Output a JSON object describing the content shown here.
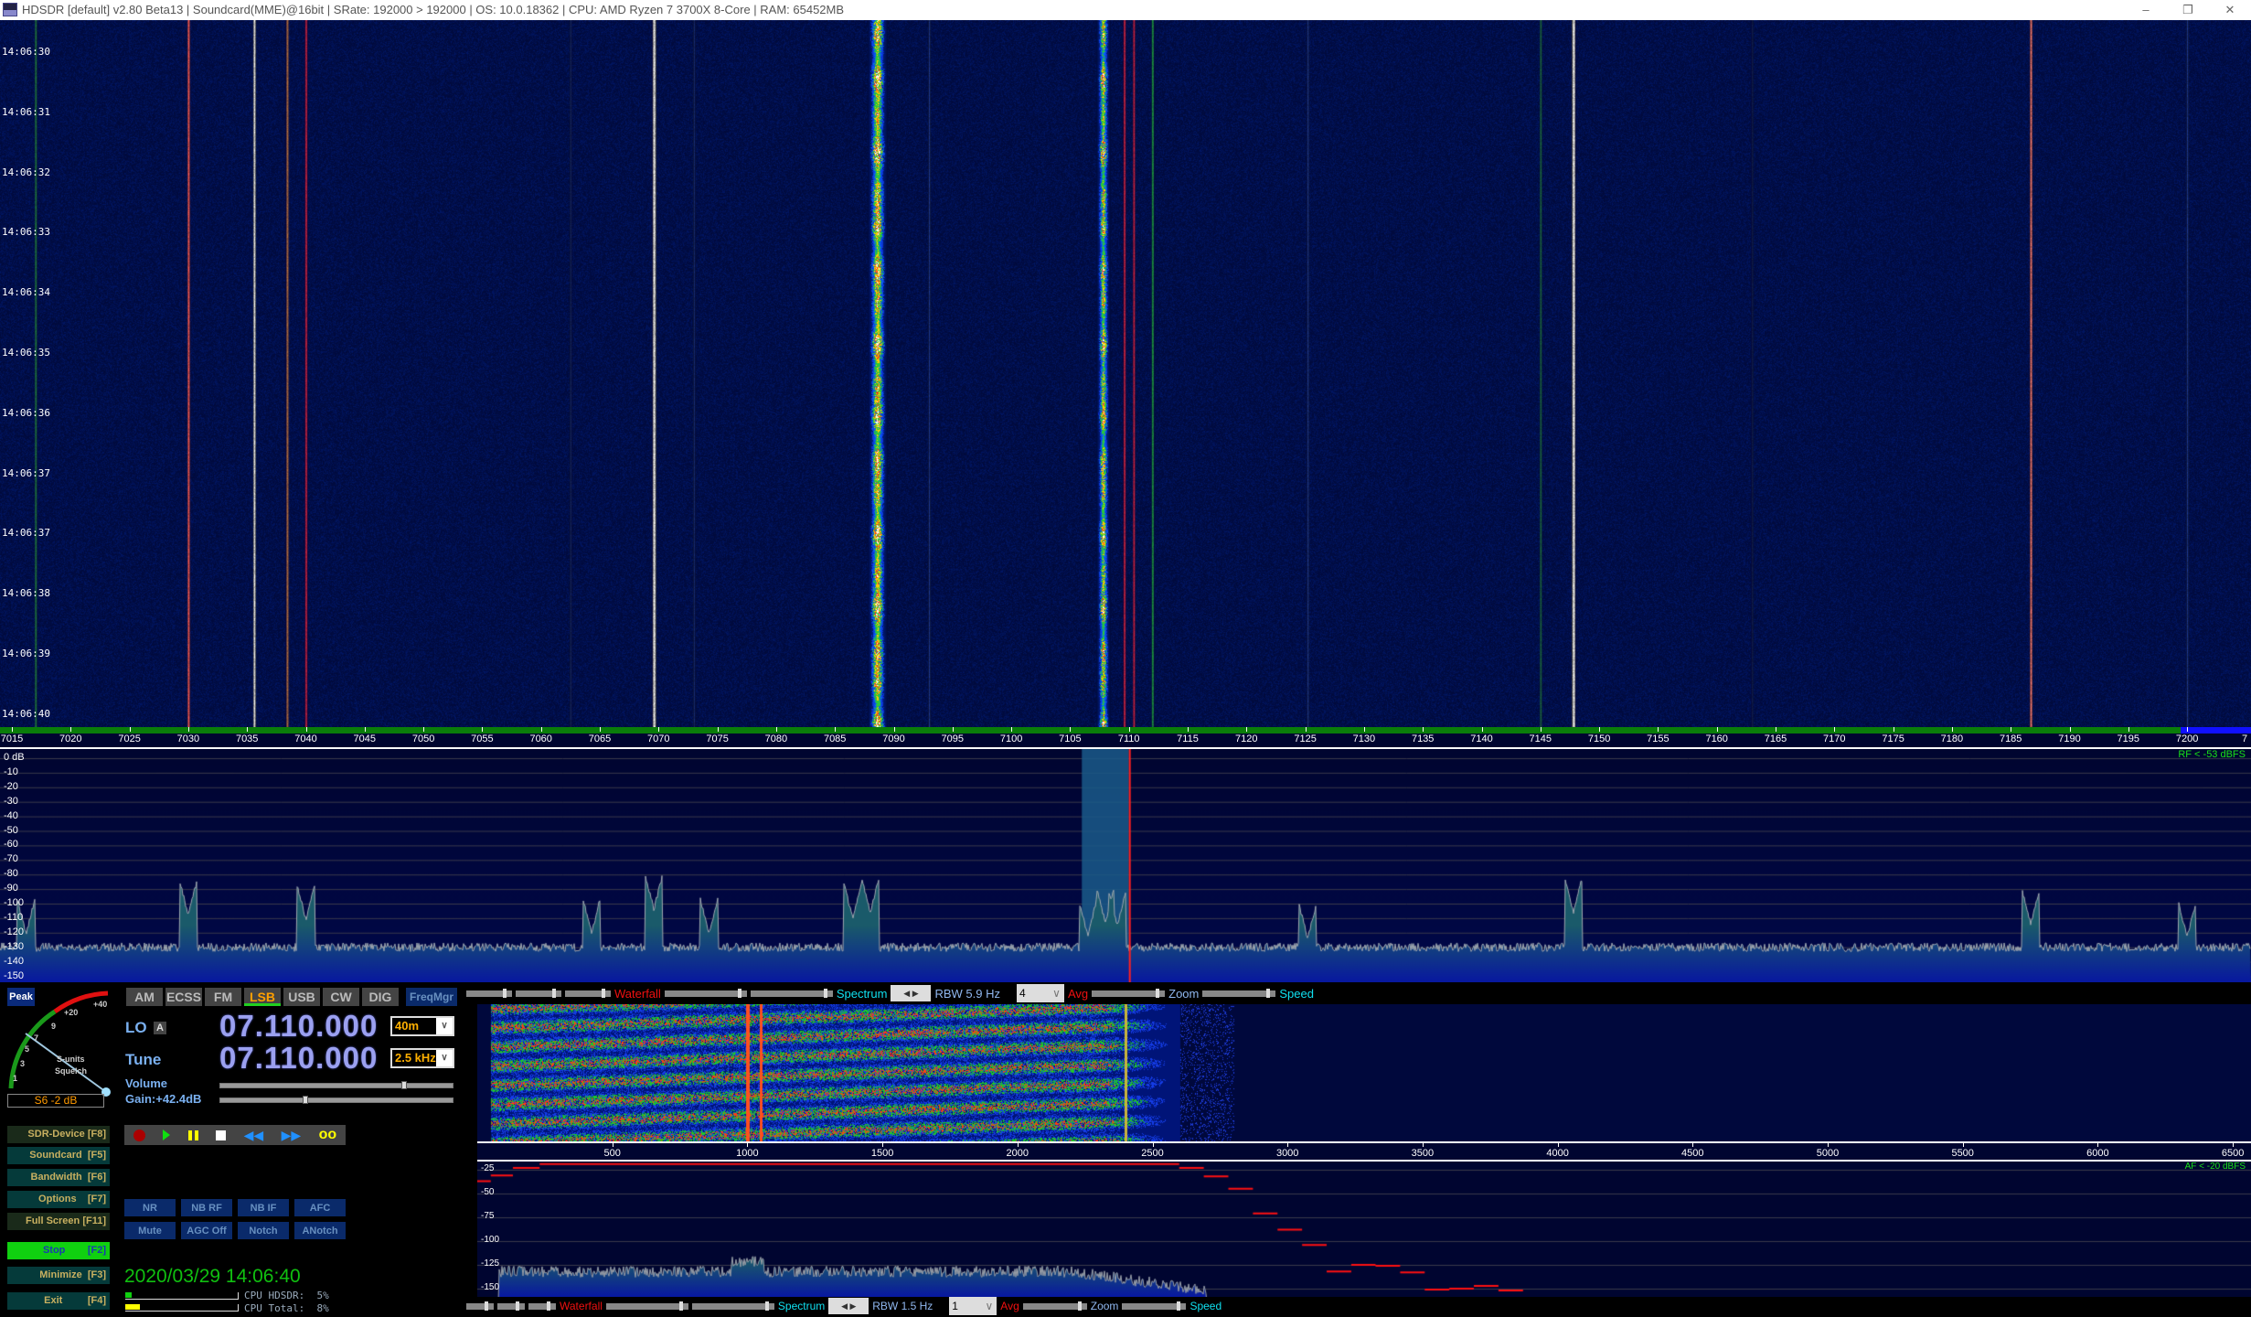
{
  "titlebar": {
    "title": "HDSDR  [default]  v2.80 Beta13  |  Soundcard(MME)@16bit  |  SRate: 192000 > 192000  |  OS: 10.0.18362  |  CPU: AMD Ryzen 7 3700X 8-Core               |  RAM: 65452MB",
    "minimize": "–",
    "restore": "❐",
    "close": "✕"
  },
  "waterfall": {
    "timestamps": [
      "14:06:30",
      "14:06:31",
      "14:06:32",
      "14:06:33",
      "14:06:34",
      "14:06:35",
      "14:06:36",
      "14:06:37",
      "14:06:37",
      "14:06:38",
      "14:06:39",
      "14:06:40"
    ],
    "signals_khz": [
      {
        "f": 7030.0,
        "w": 0.15,
        "s": 1.0,
        "c": "#ff6060"
      },
      {
        "f": 7035.6,
        "w": 0.12,
        "s": 0.95,
        "c": "#ffffff"
      },
      {
        "f": 7038.4,
        "w": 0.2,
        "s": 0.6,
        "c": "#ffa020"
      },
      {
        "f": 7040.0,
        "w": 0.12,
        "s": 0.8,
        "c": "#ff3030"
      },
      {
        "f": 7069.6,
        "w": 0.25,
        "s": 1.0,
        "c": "#ffffff"
      },
      {
        "f": 7073.0,
        "w": 0.15,
        "s": 0.4,
        "c": "#3060ff"
      },
      {
        "f": 7088.6,
        "w": 1.6,
        "s": 1.0,
        "c": "ssb"
      },
      {
        "f": 7093.0,
        "w": 0.1,
        "s": 0.5,
        "c": "#3060ff"
      },
      {
        "f": 7107.8,
        "w": 1.1,
        "s": 0.9,
        "c": "ssb"
      },
      {
        "f": 7109.6,
        "w": 0.1,
        "s": 0.8,
        "c": "#ff3030"
      },
      {
        "f": 7110.4,
        "w": 0.1,
        "s": 0.7,
        "c": "#ff3030"
      },
      {
        "f": 7112.0,
        "w": 0.1,
        "s": 0.6,
        "c": "#30ff30"
      },
      {
        "f": 7125.2,
        "w": 0.12,
        "s": 0.5,
        "c": "#3060ff"
      },
      {
        "f": 7145.0,
        "w": 0.1,
        "s": 0.5,
        "c": "#30c030"
      },
      {
        "f": 7147.8,
        "w": 0.25,
        "s": 1.0,
        "c": "#ffffff"
      },
      {
        "f": 7186.7,
        "w": 0.15,
        "s": 1.0,
        "c": "#ff8080"
      },
      {
        "f": 7062.5,
        "w": 0.1,
        "s": 0.35,
        "c": "#3060ff"
      },
      {
        "f": 7163.0,
        "w": 0.1,
        "s": 0.3,
        "c": "#3060ff"
      },
      {
        "f": 7200.0,
        "w": 0.12,
        "s": 0.5,
        "c": "#3060ff"
      },
      {
        "f": 7017.0,
        "w": 0.15,
        "s": 0.6,
        "c": "#30c030"
      }
    ]
  },
  "freq_axis": {
    "ticks_khz": [
      7015,
      7020,
      7025,
      7030,
      7035,
      7040,
      7045,
      7050,
      7055,
      7060,
      7065,
      7070,
      7075,
      7080,
      7085,
      7090,
      7095,
      7100,
      7105,
      7110,
      7115,
      7120,
      7125,
      7130,
      7135,
      7140,
      7145,
      7150,
      7155,
      7160,
      7165,
      7170,
      7175,
      7180,
      7185,
      7190,
      7195,
      7200
    ],
    "trailing_label": "7"
  },
  "spectrum": {
    "db_ticks": [
      "0 dB",
      "-10",
      "-20",
      "-30",
      "-40",
      "-50",
      "-60",
      "-70",
      "-80",
      "-90",
      "-100",
      "-110",
      "-120",
      "-130",
      "-140",
      "-150"
    ],
    "noise_floor_db": -130,
    "rf_label": "RF < -53 dBFS",
    "passband_khz": [
      7106.0,
      7110.0
    ],
    "tuned_khz": 7110.0,
    "peaks": [
      [
        7016.2,
        -121
      ],
      [
        7030.0,
        -108
      ],
      [
        7040.0,
        -111
      ],
      [
        7069.6,
        -104
      ],
      [
        7074.3,
        -121
      ],
      [
        7064.3,
        -120
      ],
      [
        7086.5,
        -110
      ],
      [
        7088.0,
        -106
      ],
      [
        7106.5,
        -122
      ],
      [
        7108.0,
        -113
      ],
      [
        7109.0,
        -115
      ],
      [
        7147.8,
        -106
      ],
      [
        7186.7,
        -114
      ],
      [
        7125.2,
        -124
      ],
      [
        7200.0,
        -123
      ]
    ]
  },
  "left_panel": {
    "peak_label": "Peak",
    "smeter": {
      "scale": [
        "1",
        "3",
        "5",
        "7",
        "9",
        "+20",
        "+40"
      ],
      "caption1": "S-units",
      "caption2": "Squelch",
      "reading": "S6 -2 dB"
    },
    "modes": [
      "AM",
      "ECSS",
      "FM",
      "LSB",
      "USB",
      "CW",
      "DIG"
    ],
    "active_mode": "LSB",
    "freqmgr": "FreqMgr",
    "lo_label": "LO",
    "lo_badge": "A",
    "lo_freq": "07.110.000",
    "band": "40m",
    "tune_label": "Tune",
    "tune_freq": "07.110.000",
    "bandwidth": "2.5 kHz",
    "volume_label": "Volume",
    "volume_level": 0.79,
    "gain_label": "Gain:+42.4dB",
    "gain_level": 0.36,
    "buttons": [
      "SDR-Device [F8]",
      "Soundcard  [F5]",
      "Bandwidth  [F6]",
      "Options    [F7]",
      "Full Screen [F11]",
      "Stop        [F2]",
      "Minimize  [F3]",
      "Exit         [F4]"
    ],
    "dsp": [
      "NR",
      "NB RF",
      "NB IF",
      "AFC",
      "Mute",
      "AGC Off",
      "Notch",
      "ANotch"
    ],
    "datetime": "2020/03/29 14:06:40",
    "cpu_hdsdr": "CPU HDSDR:  5%",
    "cpu_hdsdr_pct": 5,
    "cpu_total": "CPU Total:  8%",
    "cpu_total_pct": 8
  },
  "rf_toolbar": {
    "waterfall": "Waterfall",
    "spectrum": "Spectrum",
    "rbw": "RBW  5.9 Hz",
    "avg_value": "4",
    "avg": "Avg",
    "zoom": "Zoom",
    "speed": "Speed"
  },
  "af_toolbar": {
    "waterfall": "Waterfall",
    "spectrum": "Spectrum",
    "rbw": "RBW  1.5 Hz",
    "avg_value": "1",
    "avg": "Avg",
    "zoom": "Zoom",
    "speed": "Speed"
  },
  "audio": {
    "axis_ticks_hz": [
      500,
      1000,
      1500,
      2000,
      2500,
      3000,
      3500,
      4000,
      4500,
      5000,
      5500,
      6000,
      6500
    ],
    "db_ticks": [
      "-25",
      "-50",
      "-75",
      "-100",
      "-125",
      "-150"
    ],
    "af_label": "AF < -20 dBFS",
    "filter_curve": [
      [
        0,
        -37
      ],
      [
        50,
        -31
      ],
      [
        132,
        -23
      ],
      [
        231,
        -19
      ],
      [
        314,
        -19
      ],
      [
        2508,
        -19
      ],
      [
        2599,
        -23
      ],
      [
        2690,
        -32
      ],
      [
        2781,
        -45
      ],
      [
        2872,
        -71
      ],
      [
        2963,
        -88
      ],
      [
        3054,
        -104
      ],
      [
        3145,
        -132
      ],
      [
        3236,
        -125
      ],
      [
        3326,
        -126
      ],
      [
        3417,
        -133
      ],
      [
        3508,
        -151
      ],
      [
        3599,
        -150
      ],
      [
        3690,
        -147
      ],
      [
        3781,
        -152
      ],
      [
        3872,
        -152
      ]
    ]
  },
  "colors": {
    "waterfall_bg": "#000a3c",
    "spectrum_bg": "#000530",
    "passband": "#1a5a8a",
    "tuned_line": "#ff2020",
    "stop_button": "#10d010",
    "datetime": "#10c010"
  }
}
